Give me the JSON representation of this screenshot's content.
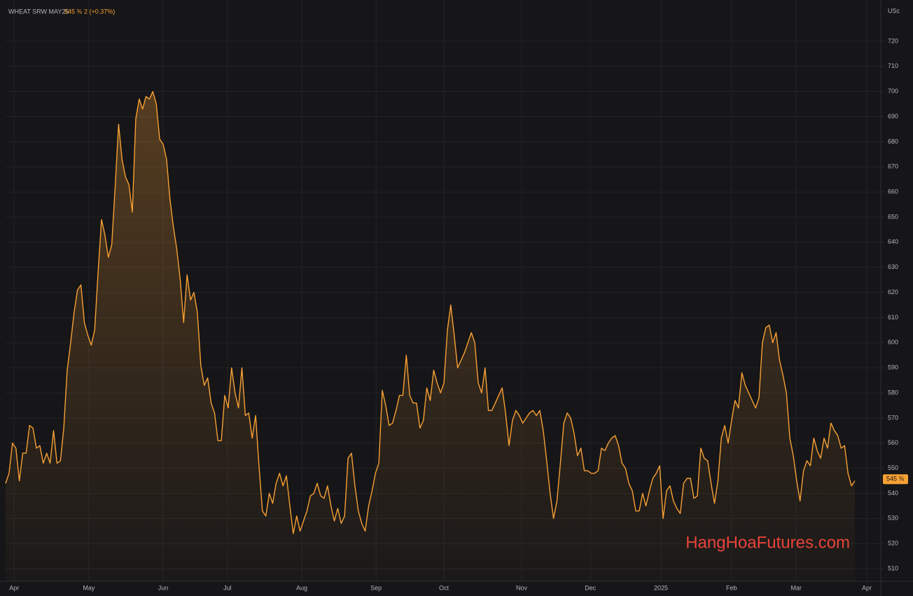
{
  "chart_data": {
    "type": "area",
    "title": "WHEAT SRW MAY25",
    "last_price_label": "545 ⅝",
    "change_label": "2 (+0.37%)",
    "unit_label": "USc",
    "watermark": "HangHoaFutures.com",
    "color": "#f7a034",
    "grid": true,
    "series": [
      {
        "name": "WHEAT SRW MAY25",
        "color": "#f7a034",
        "values": [
          544,
          548,
          560,
          558,
          545,
          556,
          556,
          567,
          566,
          558,
          559,
          552,
          556,
          552,
          565,
          552,
          553,
          566,
          589,
          600,
          612,
          621,
          623,
          608,
          603,
          599,
          605,
          628,
          649,
          643,
          634,
          639,
          662,
          687,
          673,
          666,
          663,
          652,
          689,
          697,
          693,
          698,
          697,
          700,
          695,
          681,
          679,
          673,
          657,
          646,
          637,
          625,
          608,
          627,
          617,
          620,
          612,
          591,
          583,
          586,
          576,
          572,
          561,
          561,
          579,
          574,
          590,
          580,
          574,
          590,
          571,
          572,
          562,
          571,
          551,
          533,
          531,
          540,
          536,
          544,
          548,
          543,
          547,
          535,
          524,
          531,
          525,
          529,
          533,
          539,
          540,
          544,
          539,
          538,
          543,
          535,
          529,
          534,
          528,
          531,
          554,
          556,
          543,
          533,
          528,
          525,
          535,
          541,
          548,
          552,
          581,
          575,
          567,
          568,
          573,
          579,
          579,
          595,
          579,
          576,
          576,
          566,
          569,
          582,
          577,
          589,
          584,
          580,
          584,
          605,
          615,
          603,
          590,
          593,
          596,
          600,
          604,
          600,
          584,
          580,
          590,
          573,
          573,
          576,
          579,
          582,
          572,
          559,
          569,
          573,
          571,
          568,
          570,
          572,
          573,
          571,
          573,
          565,
          553,
          540,
          530,
          537,
          552,
          568,
          572,
          570,
          564,
          555,
          558,
          549,
          549,
          548,
          548,
          549,
          558,
          557,
          560,
          562,
          563,
          559,
          552,
          550,
          544,
          541,
          533,
          533,
          540,
          535,
          541,
          546,
          548,
          551,
          530,
          541,
          543,
          537,
          534,
          532,
          544,
          546,
          546,
          538,
          539,
          558,
          554,
          553,
          544,
          536,
          545,
          562,
          567,
          560,
          569,
          577,
          574,
          588,
          583,
          580,
          577,
          574,
          578,
          600,
          606,
          607,
          600,
          604,
          593,
          587,
          580,
          562,
          555,
          545,
          537,
          549,
          553,
          551,
          562,
          557,
          554,
          562,
          558,
          568,
          565,
          563,
          558,
          559,
          548,
          543,
          545
        ]
      }
    ],
    "last_price": {
      "value": 545.625,
      "label": "545 ⅝"
    },
    "xlim": [
      0,
      255.6
    ],
    "xticks": [
      {
        "value": 2.5,
        "label": "Apr"
      },
      {
        "value": 24.3,
        "label": "May"
      },
      {
        "value": 46,
        "label": "Jun"
      },
      {
        "value": 64.8,
        "label": "Jul"
      },
      {
        "value": 86.5,
        "label": "Aug"
      },
      {
        "value": 108.2,
        "label": "Sep"
      },
      {
        "value": 128,
        "label": "Oct"
      },
      {
        "value": 150.7,
        "label": "Nov"
      },
      {
        "value": 170.8,
        "label": "Dec"
      },
      {
        "value": 191.4,
        "label": "2025"
      },
      {
        "value": 212,
        "label": "Feb"
      },
      {
        "value": 230.9,
        "label": "Mar"
      },
      {
        "value": 251.5,
        "label": "Apr"
      }
    ],
    "ylim": [
      505,
      734.2
    ],
    "yticks": [
      510,
      520,
      530,
      540,
      550,
      560,
      570,
      580,
      590,
      600,
      610,
      620,
      630,
      640,
      650,
      660,
      670,
      680,
      690,
      700,
      710,
      720
    ]
  }
}
